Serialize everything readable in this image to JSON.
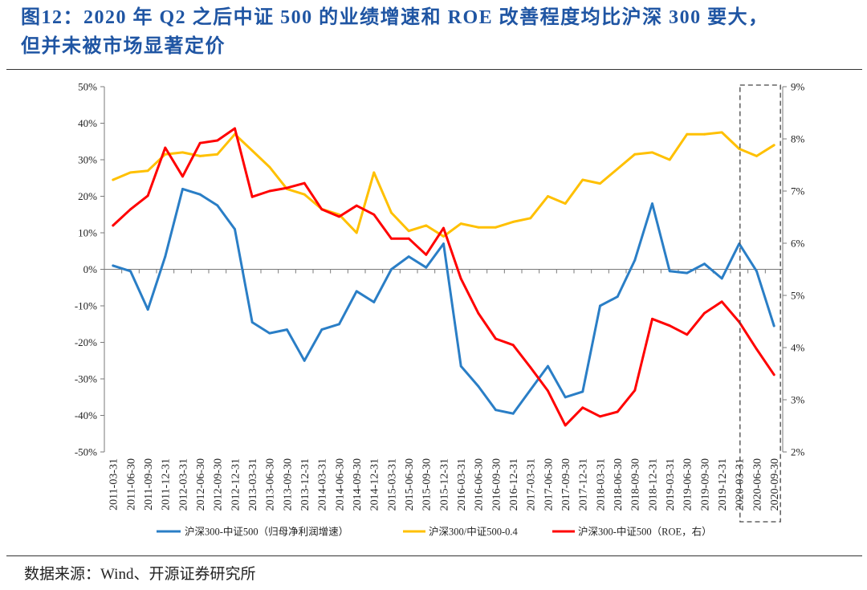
{
  "header": {
    "title_lines": [
      "图12：2020 年 Q2 之后中证 500 的业绩增速和 ROE 改善程度均比沪深 300 要大，",
      "但并未被市场显著定价"
    ]
  },
  "chart_data": {
    "type": "line",
    "categories": [
      "2011-03-31",
      "2011-06-30",
      "2011-09-30",
      "2011-12-31",
      "2012-03-31",
      "2012-06-30",
      "2012-09-30",
      "2012-12-31",
      "2013-03-31",
      "2013-06-30",
      "2013-09-30",
      "2013-12-31",
      "2014-03-31",
      "2014-06-30",
      "2014-09-30",
      "2014-12-31",
      "2015-03-31",
      "2015-06-30",
      "2015-09-30",
      "2015-12-31",
      "2016-03-31",
      "2016-06-30",
      "2016-09-30",
      "2016-12-31",
      "2017-03-31",
      "2017-06-30",
      "2017-09-30",
      "2017-12-31",
      "2018-03-31",
      "2018-06-30",
      "2018-09-30",
      "2018-12-31",
      "2019-03-31",
      "2019-06-30",
      "2019-09-30",
      "2019-12-31",
      "2020-03-31",
      "2020-06-30",
      "2020-09-30"
    ],
    "y_left": {
      "range": [
        -50,
        50
      ],
      "ticks": [
        50,
        40,
        30,
        20,
        10,
        0,
        -10,
        -20,
        -30,
        -40,
        -50
      ],
      "tick_labels": [
        "50%",
        "40%",
        "30%",
        "20%",
        "10%",
        "0%",
        "-10%",
        "-20%",
        "-30%",
        "-40%",
        "-50%"
      ]
    },
    "y_right": {
      "range": [
        2,
        9
      ],
      "ticks": [
        9,
        8,
        7,
        6,
        5,
        4,
        3,
        2
      ],
      "tick_labels": [
        "9%",
        "8%",
        "7%",
        "6%",
        "5%",
        "4%",
        "3%",
        "2%"
      ]
    },
    "series": [
      {
        "name": "沪深300-中证500（归母净利润增速）",
        "secondary_y": false,
        "color": "#2A7EC6",
        "values": [
          1.0,
          -0.5,
          -11.0,
          3.5,
          22.0,
          20.5,
          17.5,
          11.0,
          -14.5,
          -17.5,
          -16.5,
          -25.0,
          -16.5,
          -15.0,
          -6.0,
          -9.0,
          0.0,
          3.5,
          0.5,
          7.0,
          -26.5,
          -32.0,
          -38.5,
          -39.5,
          -33.0,
          -26.5,
          -35.0,
          -33.5,
          -10.0,
          -7.5,
          2.5,
          18.0,
          -0.5,
          -1.0,
          1.5,
          -2.5,
          7.0,
          -0.5,
          -15.5
        ]
      },
      {
        "name": "沪深300/中证500-0.4",
        "secondary_y": false,
        "color": "#FFC000",
        "values": [
          24.5,
          26.5,
          27.0,
          31.5,
          32.0,
          31.0,
          31.5,
          37.0,
          32.5,
          28.0,
          22.0,
          20.5,
          16.5,
          15.0,
          10.0,
          26.5,
          15.5,
          10.5,
          12.0,
          9.0,
          12.5,
          11.5,
          11.5,
          13.0,
          14.0,
          20.0,
          18.0,
          24.5,
          23.5,
          27.5,
          31.5,
          32.0,
          30.0,
          37.0,
          37.0,
          37.5,
          33.0,
          31.0,
          34.0
        ]
      },
      {
        "name": "沪深300-中证500（ROE，右）",
        "secondary_y": true,
        "color": "#FF0000",
        "values": [
          6.34,
          6.65,
          6.91,
          7.83,
          7.28,
          7.92,
          7.97,
          8.2,
          6.89,
          7.0,
          7.06,
          7.15,
          6.65,
          6.51,
          6.72,
          6.55,
          6.09,
          6.09,
          5.78,
          6.29,
          5.32,
          4.66,
          4.17,
          4.05,
          3.62,
          3.17,
          2.51,
          2.85,
          2.68,
          2.77,
          3.18,
          4.55,
          4.42,
          4.25,
          4.66,
          4.88,
          4.49,
          3.97,
          3.48
        ]
      }
    ],
    "highlight_range": [
      "2020-03-31",
      "2020-09-30"
    ],
    "legend_position": "bottom",
    "grid": false
  },
  "footer": {
    "source": "数据来源：Wind、开源证券研究所"
  }
}
